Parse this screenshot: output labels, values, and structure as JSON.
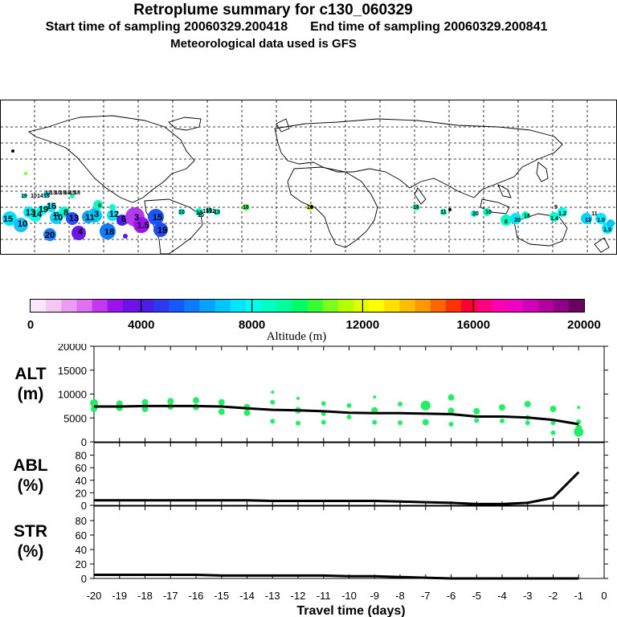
{
  "header": {
    "title": "Retroplume summary for c130_060329",
    "start_label": "Start time of sampling 20060329.200418",
    "end_label": "End time of sampling 20060329.200841",
    "met_label": "Meteorological data used is GFS"
  },
  "colorbar": {
    "tick_labels": [
      "0",
      "4000",
      "8000",
      "12000",
      "16000",
      "20000"
    ],
    "xlabel": "Altitude (m)",
    "range": [
      0,
      20000
    ],
    "colors": [
      "#fbe6fb",
      "#f4c7f4",
      "#ed9cf3",
      "#e070f1",
      "#c438f0",
      "#9b12ee",
      "#7010ea",
      "#4c1de4",
      "#2d38f0",
      "#1657ff",
      "#0b7cff",
      "#08a3ff",
      "#00c6ff",
      "#00e6ff",
      "#00ffea",
      "#00ffc0",
      "#00ff99",
      "#00ff66",
      "#33ff33",
      "#7aff1a",
      "#b4ff00",
      "#e1ff00",
      "#ffff00",
      "#ffe100",
      "#ffbf00",
      "#ff9900",
      "#ff6600",
      "#ff3300",
      "#ff0033",
      "#ff0080",
      "#ff00b3",
      "#f000c4",
      "#d300b7",
      "#b3009f",
      "#8f0086",
      "#6a0060"
    ]
  },
  "map_labels": {
    "markers": [
      "15",
      "10",
      "13",
      "14",
      "20",
      "19",
      "16",
      "10",
      "8",
      "13",
      "4",
      "11",
      "3",
      "18",
      "12",
      "6",
      "3",
      "1.5",
      "15",
      "19",
      "6",
      "15",
      "19",
      "10",
      "14",
      "12",
      "13",
      "10",
      "19",
      "10",
      "15",
      "18",
      "10",
      "19",
      "15",
      "13",
      "16",
      "20",
      "16",
      "11",
      "20",
      "10",
      "8",
      "20",
      "18",
      "1.4",
      "1.2",
      "9",
      "13",
      "11",
      "1.0",
      "1.9",
      "10",
      "13",
      "12",
      "11"
    ]
  },
  "chart_data": [
    {
      "type": "scatter",
      "panel": "ALT",
      "ylabel": "ALT\n(m)",
      "ylabel_lines": [
        "ALT",
        "(m)"
      ],
      "ylim": [
        0,
        20000
      ],
      "yticks": [
        "0",
        "5000",
        "10000",
        "15000",
        "20000"
      ],
      "xlim": [
        -20,
        0
      ],
      "series": [
        {
          "name": "mean altitude",
          "style": "line",
          "x": [
            -20,
            -19,
            -18,
            -17,
            -16,
            -15,
            -14,
            -13,
            -12,
            -11,
            -10,
            -9,
            -8,
            -7,
            -6,
            -5,
            -4,
            -3,
            -2,
            -1
          ],
          "y": [
            7400,
            7400,
            7500,
            7500,
            7500,
            7400,
            7000,
            6700,
            6600,
            6400,
            6100,
            6000,
            6000,
            5900,
            5800,
            5300,
            5300,
            5100,
            4600,
            3700
          ]
        },
        {
          "name": "plume clusters",
          "style": "points",
          "color": "#22ee66",
          "x": [
            -20,
            -20,
            -19,
            -19,
            -18,
            -18,
            -17,
            -17,
            -16,
            -16,
            -15,
            -15,
            -14,
            -14,
            -13,
            -13,
            -13,
            -12,
            -12,
            -12,
            -11,
            -11,
            -11,
            -10,
            -10,
            -9,
            -9,
            -9,
            -8,
            -8,
            -7,
            -7,
            -6,
            -6,
            -6,
            -5,
            -5,
            -4,
            -4,
            -3,
            -3,
            -3,
            -2,
            -2,
            -2,
            -1,
            -1,
            -1,
            -1
          ],
          "y": [
            8100,
            6900,
            8000,
            7100,
            8300,
            6900,
            8500,
            7400,
            8700,
            7300,
            8300,
            6300,
            7300,
            6100,
            10400,
            8300,
            4300,
            9100,
            6600,
            3900,
            8000,
            5900,
            4100,
            7600,
            5200,
            9400,
            6600,
            4100,
            7900,
            4000,
            7600,
            4100,
            9300,
            6500,
            3700,
            6400,
            4500,
            7200,
            4400,
            7900,
            5100,
            4000,
            6900,
            4000,
            1900,
            7200,
            4200,
            2900,
            2100
          ],
          "size": [
            5,
            4,
            4,
            4,
            4,
            4,
            4,
            4,
            4,
            4,
            4,
            4,
            4,
            4,
            2,
            3,
            3,
            2,
            4,
            3,
            3,
            3,
            3,
            3,
            3,
            2,
            4,
            3,
            3,
            3,
            6,
            4,
            4,
            4,
            3,
            4,
            3,
            4,
            3,
            4,
            3,
            3,
            4,
            3,
            3,
            2,
            3,
            4,
            6
          ]
        }
      ]
    },
    {
      "type": "line",
      "panel": "ABL",
      "ylabel": "ABL\n(%)",
      "ylabel_lines": [
        "ABL",
        "(%)"
      ],
      "ylim": [
        0,
        100
      ],
      "yticks": [
        "0",
        "20",
        "40",
        "60",
        "80"
      ],
      "xlim": [
        -20,
        0
      ],
      "x": [
        -20,
        -19,
        -18,
        -17,
        -16,
        -15,
        -14,
        -13,
        -12,
        -11,
        -10,
        -9,
        -8,
        -7,
        -6,
        -5,
        -4,
        -3,
        -2,
        -1
      ],
      "values": [
        8,
        8,
        8,
        8,
        8,
        8,
        8,
        7,
        7,
        7,
        7,
        7,
        6,
        5,
        4,
        2,
        2,
        4,
        12,
        53
      ]
    },
    {
      "type": "line",
      "panel": "STR",
      "ylabel": "STR\n(%)",
      "ylabel_lines": [
        "STR",
        "(%)"
      ],
      "ylim": [
        0,
        100
      ],
      "yticks": [
        "0",
        "20",
        "40",
        "60",
        "80"
      ],
      "xlim": [
        -20,
        0
      ],
      "x": [
        -20,
        -19,
        -18,
        -17,
        -16,
        -15,
        -14,
        -13,
        -12,
        -11,
        -10,
        -9,
        -8,
        -7,
        -6,
        -5,
        -4,
        -3,
        -2,
        -1
      ],
      "values": [
        5,
        5,
        5,
        5,
        5,
        4,
        4,
        4,
        4,
        4,
        3,
        3,
        2,
        1,
        0,
        0,
        0,
        0,
        0,
        0
      ]
    }
  ],
  "xaxis": {
    "tick_labels": [
      "-20",
      "-19",
      "-18",
      "-17",
      "-16",
      "-15",
      "-14",
      "-13",
      "-12",
      "-11",
      "-10",
      "-9",
      "-8",
      "-7",
      "-6",
      "-5",
      "-4",
      "-3",
      "-2",
      "-1",
      "0"
    ],
    "xlabel": "Travel time (days)"
  }
}
